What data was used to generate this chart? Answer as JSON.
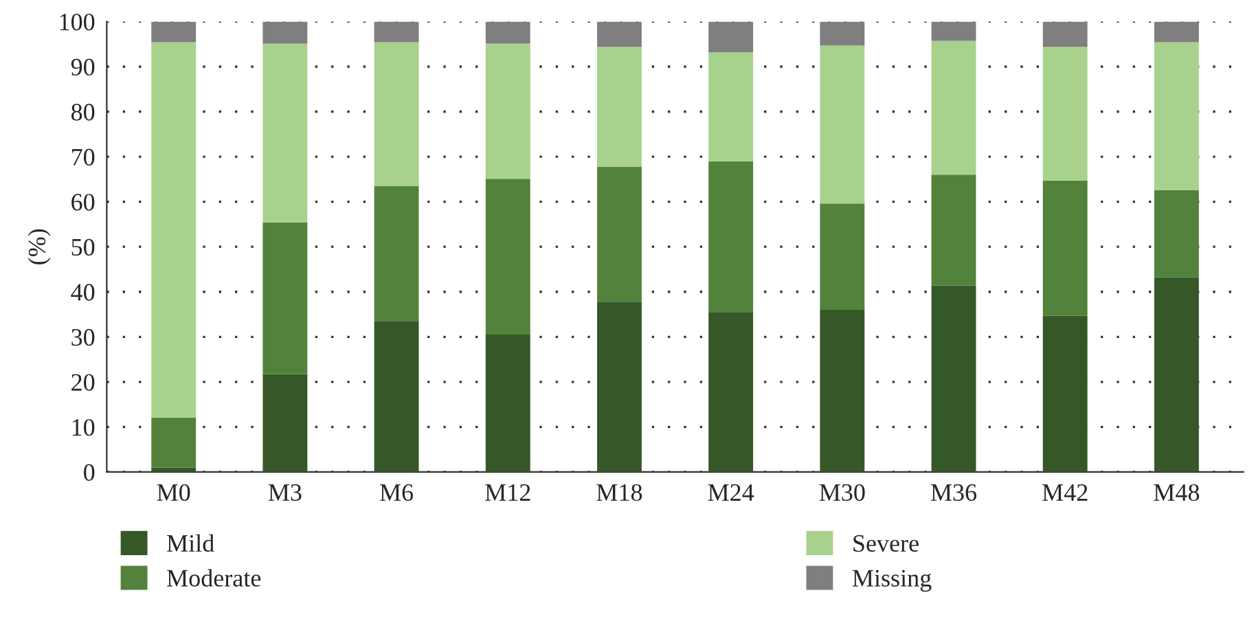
{
  "chart_data": {
    "type": "bar",
    "stacked": true,
    "ylabel": "(%)",
    "categories": [
      "M0",
      "M3",
      "M6",
      "M12",
      "M18",
      "M24",
      "M30",
      "M36",
      "M42",
      "M48"
    ],
    "series": [
      {
        "name": "Mild",
        "color": "#365728",
        "values": [
          1.0,
          21.7,
          33.5,
          30.5,
          37.8,
          35.4,
          36.0,
          41.4,
          34.7,
          43.2
        ]
      },
      {
        "name": "Moderate",
        "color": "#52823b",
        "values": [
          11.1,
          33.7,
          30.0,
          34.6,
          30.0,
          33.6,
          23.6,
          24.6,
          30.0,
          19.4
        ]
      },
      {
        "name": "Severe",
        "color": "#a8d18d",
        "values": [
          83.3,
          39.7,
          31.9,
          30.0,
          26.6,
          24.2,
          35.1,
          29.7,
          29.7,
          32.8
        ]
      },
      {
        "name": "Missing",
        "color": "#7f7f7f",
        "values": [
          4.6,
          4.9,
          4.6,
          4.9,
          5.6,
          6.8,
          5.3,
          4.3,
          5.6,
          4.6
        ]
      }
    ],
    "ylim": [
      0,
      100
    ],
    "yticks": [
      0,
      10,
      20,
      30,
      40,
      50,
      60,
      70,
      80,
      90,
      100
    ],
    "grid": "y",
    "legend": "bottom"
  }
}
